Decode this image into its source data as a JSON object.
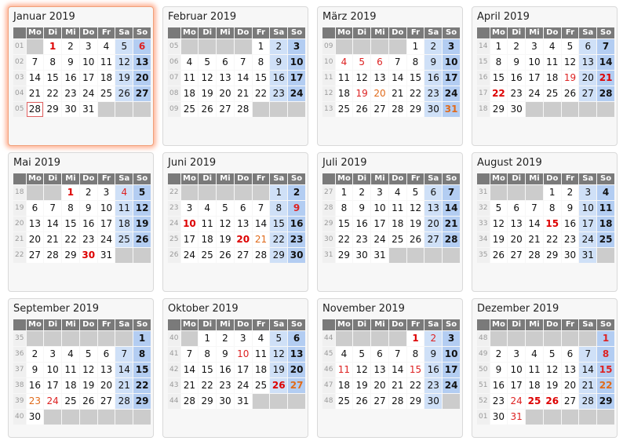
{
  "weekday_headers": [
    "Mo",
    "Di",
    "Mi",
    "Do",
    "Fr",
    "Sa",
    "So"
  ],
  "months": [
    {
      "title": "Januar 2019",
      "start": 1,
      "days": 31,
      "week1": 1,
      "holidays": {
        "1": "h1",
        "6": "h2"
      },
      "today": 28
    },
    {
      "title": "Februar 2019",
      "start": 4,
      "days": 28,
      "week1": 5,
      "holidays": {}
    },
    {
      "title": "März 2019",
      "start": 4,
      "days": 31,
      "week1": 9,
      "holidays": {
        "4": "h2",
        "5": "h2",
        "6": "h2",
        "19": "h2",
        "20": "h3",
        "31": "h3"
      }
    },
    {
      "title": "April 2019",
      "start": 0,
      "days": 30,
      "week1": 14,
      "holidays": {
        "19": "h2",
        "21": "h1",
        "22": "h1"
      }
    },
    {
      "title": "Mai 2019",
      "start": 2,
      "days": 31,
      "week1": 18,
      "holidays": {
        "1": "h1",
        "4": "h2",
        "30": "h1"
      }
    },
    {
      "title": "Juni 2019",
      "start": 5,
      "days": 30,
      "week1": 22,
      "holidays": {
        "9": "h2",
        "10": "h1",
        "20": "h1",
        "21": "h3"
      }
    },
    {
      "title": "Juli 2019",
      "start": 0,
      "days": 31,
      "week1": 27,
      "holidays": {}
    },
    {
      "title": "August 2019",
      "start": 3,
      "days": 31,
      "week1": 31,
      "holidays": {
        "15": "h1"
      }
    },
    {
      "title": "September 2019",
      "start": 6,
      "days": 30,
      "week1": 35,
      "holidays": {
        "23": "h3",
        "24": "h2"
      }
    },
    {
      "title": "Oktober 2019",
      "start": 1,
      "days": 31,
      "week1": 40,
      "holidays": {
        "10": "h2",
        "26": "h1",
        "27": "h3"
      }
    },
    {
      "title": "November 2019",
      "start": 4,
      "days": 30,
      "week1": 44,
      "holidays": {
        "1": "h1",
        "2": "h2",
        "11": "h2",
        "15": "h2"
      }
    },
    {
      "title": "Dezember 2019",
      "start": 6,
      "days": 31,
      "week1": 48,
      "holidays": {
        "1": "h2",
        "8": "h2",
        "15": "h2",
        "22": "h3",
        "24": "h2",
        "25": "h1",
        "26": "h1",
        "31": "h2"
      }
    }
  ]
}
